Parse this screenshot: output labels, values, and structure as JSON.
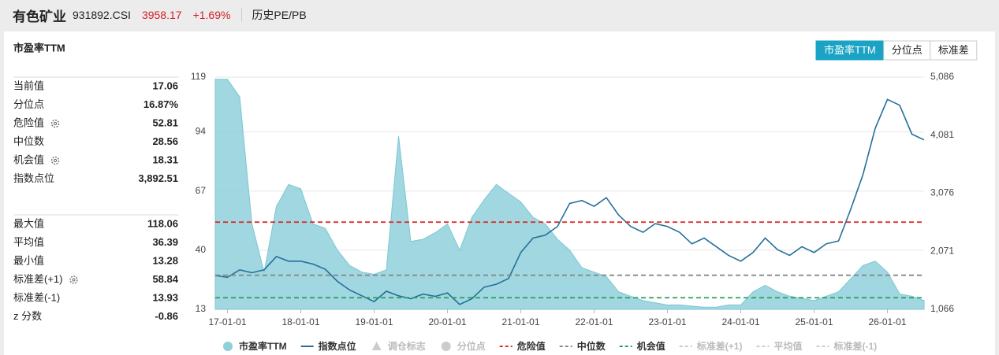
{
  "header": {
    "title": "有色矿业",
    "code": "931892.CSI",
    "price": "3958.17",
    "change": "+1.69%",
    "tab": "历史PE/PB"
  },
  "panel": {
    "title": "市盈率TTM",
    "buttons": [
      "市盈率TTM",
      "分位点",
      "标准差"
    ]
  },
  "stats": {
    "groups": [
      [
        {
          "label": "当前值",
          "value": 17.06
        },
        {
          "label": "分位点",
          "value": "16.87%"
        },
        {
          "label": "危险值",
          "value": 52.81,
          "gear": true
        },
        {
          "label": "中位数",
          "value": 28.56
        },
        {
          "label": "机会值",
          "value": 18.31,
          "gear": true
        },
        {
          "label": "指数点位",
          "value": "3,892.51"
        }
      ],
      [
        {
          "label": "最大值",
          "value": 118.06
        },
        {
          "label": "平均值",
          "value": 36.39
        },
        {
          "label": "最小值",
          "value": 13.28
        },
        {
          "label": "标准差(+1)",
          "value": 58.84,
          "gear": true
        },
        {
          "label": "标准差(-1)",
          "value": 13.93
        },
        {
          "label": "z 分数",
          "value": -0.86
        }
      ]
    ]
  },
  "chart_data": {
    "type": "area-line",
    "x": [
      "16-11-01",
      "17-01-01",
      "17-03-01",
      "17-05-01",
      "17-07-01",
      "17-09-01",
      "17-11-01",
      "18-01-01",
      "18-03-01",
      "18-05-01",
      "18-07-01",
      "18-09-01",
      "18-11-01",
      "19-01-01",
      "19-03-01",
      "19-05-01",
      "19-07-01",
      "19-09-01",
      "19-11-01",
      "20-01-01",
      "20-03-01",
      "20-05-01",
      "20-07-01",
      "20-09-01",
      "20-11-01",
      "21-01-01",
      "21-03-01",
      "21-05-01",
      "21-07-01",
      "21-09-01",
      "21-11-01",
      "22-01-01",
      "22-03-01",
      "22-05-01",
      "22-07-01",
      "22-09-01",
      "22-11-01",
      "23-01-01",
      "23-03-01",
      "23-05-01",
      "23-07-01",
      "23-09-01",
      "23-11-01",
      "24-01-01",
      "24-03-01",
      "24-05-01",
      "24-07-01",
      "24-09-01",
      "24-11-01",
      "25-01-01",
      "25-03-01",
      "25-05-01",
      "25-07-01",
      "25-09-01",
      "25-11-01",
      "26-01-01",
      "26-03-01",
      "26-05-01",
      "26-07-01"
    ],
    "xlim": [
      "16-11-01",
      "26-07-01"
    ],
    "xticks": [
      "17-01-01",
      "18-01-01",
      "19-01-01",
      "20-01-01",
      "21-01-01",
      "22-01-01",
      "23-01-01",
      "24-01-01",
      "25-01-01",
      "26-01-01"
    ],
    "ylim": [
      13,
      119
    ],
    "yticks": [
      13,
      40,
      67,
      94,
      119
    ],
    "y2lim": [
      1066,
      5086
    ],
    "y2ticks": [
      {
        "value": 1066,
        "label": "1,066"
      },
      {
        "value": 2071,
        "label": "2,071"
      },
      {
        "value": 3076,
        "label": "3,076"
      },
      {
        "value": 4081,
        "label": "4,081"
      },
      {
        "value": 5086,
        "label": "5,086"
      }
    ],
    "grid": true,
    "series": [
      {
        "name": "市盈率TTM",
        "color": "#8fd0da",
        "kind": "area",
        "values": [
          118,
          118,
          110,
          52,
          30,
          60,
          70,
          68,
          52,
          50,
          40,
          33,
          30,
          29,
          31,
          92,
          44,
          45,
          48,
          52,
          40,
          55,
          63,
          70,
          66,
          62,
          55,
          52,
          45,
          40,
          32,
          30,
          28,
          21,
          19,
          17,
          16,
          15,
          15,
          14.5,
          14,
          14,
          15,
          15,
          21,
          24,
          21,
          19,
          18,
          17,
          19,
          21,
          27,
          33,
          35,
          30,
          20,
          19,
          17
        ]
      },
      {
        "name": "指数点位",
        "color": "#24709a",
        "kind": "line",
        "axis": "y2",
        "values": [
          1650,
          1620,
          1750,
          1700,
          1750,
          1980,
          1900,
          1900,
          1850,
          1760,
          1550,
          1400,
          1300,
          1200,
          1380,
          1300,
          1250,
          1330,
          1290,
          1350,
          1150,
          1250,
          1450,
          1500,
          1600,
          2050,
          2300,
          2350,
          2500,
          2900,
          2950,
          2850,
          3000,
          2700,
          2500,
          2400,
          2550,
          2500,
          2400,
          2200,
          2300,
          2150,
          2000,
          1900,
          2050,
          2300,
          2100,
          2000,
          2150,
          2050,
          2200,
          2250,
          2800,
          3400,
          4200,
          4700,
          4600,
          4100,
          4000
        ]
      }
    ],
    "reference_lines": [
      {
        "value": 52.81,
        "color": "#d9302c"
      },
      {
        "value": 28.56,
        "color": "#888888"
      },
      {
        "value": 18.31,
        "color": "#2aa05a"
      }
    ],
    "legend": [
      {
        "name": "市盈率TTM",
        "color": "#8fd0da",
        "marker": "circle",
        "active": true
      },
      {
        "name": "指数点位",
        "color": "#24709a",
        "marker": "line",
        "active": true
      },
      {
        "name": "调仓标志",
        "color": "#cccccc",
        "marker": "triangle",
        "active": false
      },
      {
        "name": "分位点",
        "color": "#cccccc",
        "marker": "circle",
        "active": false
      },
      {
        "name": "危险值",
        "color": "#d9302c",
        "marker": "dash",
        "active": true
      },
      {
        "name": "中位数",
        "color": "#888888",
        "marker": "dash",
        "active": true
      },
      {
        "name": "机会值",
        "color": "#2aa05a",
        "marker": "dash",
        "active": true
      },
      {
        "name": "标准差(+1)",
        "color": "#cccccc",
        "marker": "dash",
        "active": false
      },
      {
        "name": "平均值",
        "color": "#cccccc",
        "marker": "dash",
        "active": false
      },
      {
        "name": "标准差(-1)",
        "color": "#cccccc",
        "marker": "dash",
        "active": false
      }
    ]
  }
}
